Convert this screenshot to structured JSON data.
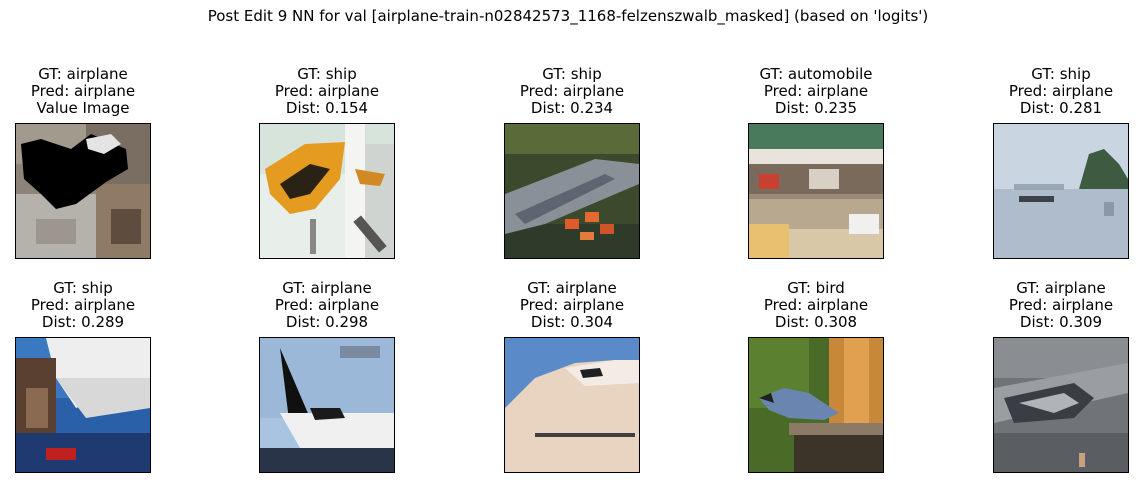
{
  "title": "Post Edit 9 NN for val [airplane-train-n02842573_1168-felzenszwalb_masked] (based on 'logits')",
  "panels": [
    {
      "gt": "GT: airplane",
      "pred": "Pred: airplane",
      "third": "Value Image"
    },
    {
      "gt": "GT: ship",
      "pred": "Pred: airplane",
      "third": "Dist: 0.154"
    },
    {
      "gt": "GT: ship",
      "pred": "Pred: airplane",
      "third": "Dist: 0.234"
    },
    {
      "gt": "GT: automobile",
      "pred": "Pred: airplane",
      "third": "Dist: 0.235"
    },
    {
      "gt": "GT: ship",
      "pred": "Pred: airplane",
      "third": "Dist: 0.281"
    },
    {
      "gt": "GT: ship",
      "pred": "Pred: airplane",
      "third": "Dist: 0.289"
    },
    {
      "gt": "GT: airplane",
      "pred": "Pred: airplane",
      "third": "Dist: 0.298"
    },
    {
      "gt": "GT: airplane",
      "pred": "Pred: airplane",
      "third": "Dist: 0.304"
    },
    {
      "gt": "GT: bird",
      "pred": "Pred: airplane",
      "third": "Dist: 0.308"
    },
    {
      "gt": "GT: airplane",
      "pred": "Pred: airplane",
      "third": "Dist: 0.309"
    }
  ]
}
